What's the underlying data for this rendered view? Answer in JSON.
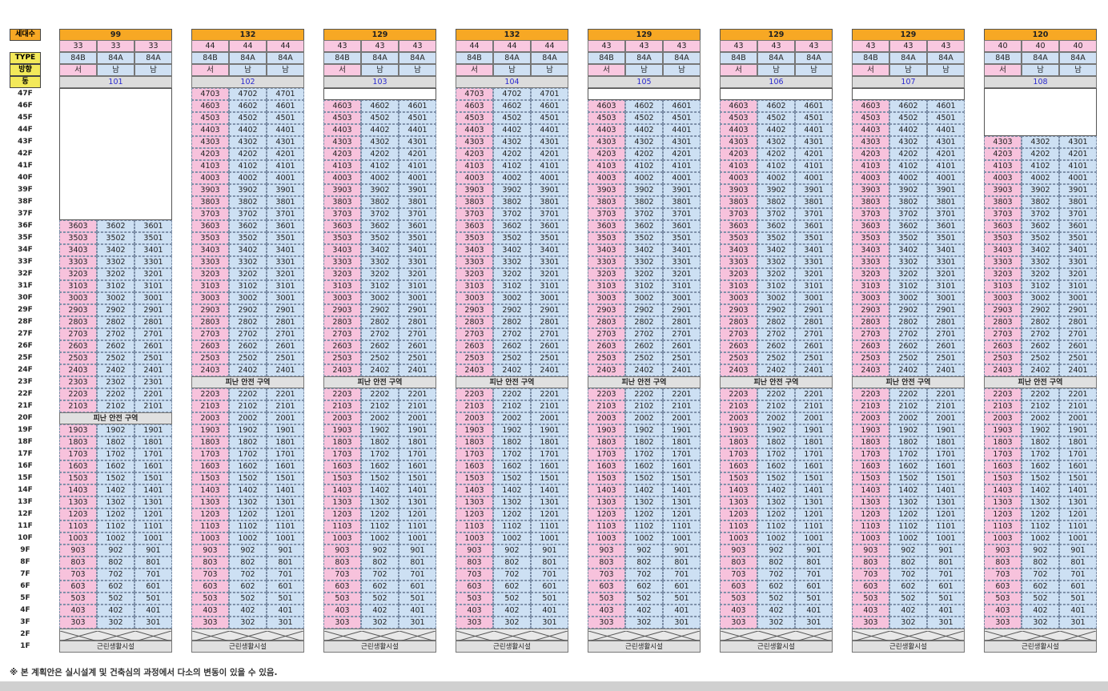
{
  "row_labels": {
    "households": "세대수",
    "type": "TYPE",
    "direction": "방향",
    "dong": "동"
  },
  "floors": [
    "47F",
    "46F",
    "45F",
    "44F",
    "43F",
    "42F",
    "41F",
    "40F",
    "39F",
    "38F",
    "37F",
    "36F",
    "35F",
    "34F",
    "33F",
    "32F",
    "31F",
    "30F",
    "29F",
    "28F",
    "27F",
    "26F",
    "25F",
    "24F",
    "23F",
    "22F",
    "21F",
    "20F",
    "19F",
    "18F",
    "17F",
    "16F",
    "15F",
    "14F",
    "13F",
    "12F",
    "11F",
    "10F",
    "9F",
    "8F",
    "7F",
    "6F",
    "5F",
    "4F",
    "3F",
    "2F",
    "1F"
  ],
  "types": [
    "84B",
    "84A",
    "84A"
  ],
  "directions": [
    "서",
    "남",
    "남"
  ],
  "refuge_label": "피난 안전 구역",
  "facility_label": "근린생활시설",
  "buildings": [
    {
      "dong": "101",
      "total": "99",
      "counts": [
        "33",
        "33",
        "33"
      ],
      "top_floor": 36,
      "refuge_floor": 20
    },
    {
      "dong": "102",
      "total": "132",
      "counts": [
        "44",
        "44",
        "44"
      ],
      "top_floor": 47,
      "refuge_floor": 23
    },
    {
      "dong": "103",
      "total": "129",
      "counts": [
        "43",
        "43",
        "43"
      ],
      "top_floor": 46,
      "refuge_floor": 23
    },
    {
      "dong": "104",
      "total": "132",
      "counts": [
        "44",
        "44",
        "44"
      ],
      "top_floor": 47,
      "refuge_floor": 23
    },
    {
      "dong": "105",
      "total": "129",
      "counts": [
        "43",
        "43",
        "43"
      ],
      "top_floor": 46,
      "refuge_floor": 23
    },
    {
      "dong": "106",
      "total": "129",
      "counts": [
        "43",
        "43",
        "43"
      ],
      "top_floor": 46,
      "refuge_floor": 23
    },
    {
      "dong": "107",
      "total": "129",
      "counts": [
        "43",
        "43",
        "43"
      ],
      "top_floor": 46,
      "refuge_floor": 23
    },
    {
      "dong": "108",
      "total": "120",
      "counts": [
        "40",
        "40",
        "40"
      ],
      "top_floor": 43,
      "refuge_floor": 23
    }
  ],
  "note": "※ 본 계획안은 실시설계 및 건축심의 과정에서 다소의 변동이 있을 수 있음."
}
